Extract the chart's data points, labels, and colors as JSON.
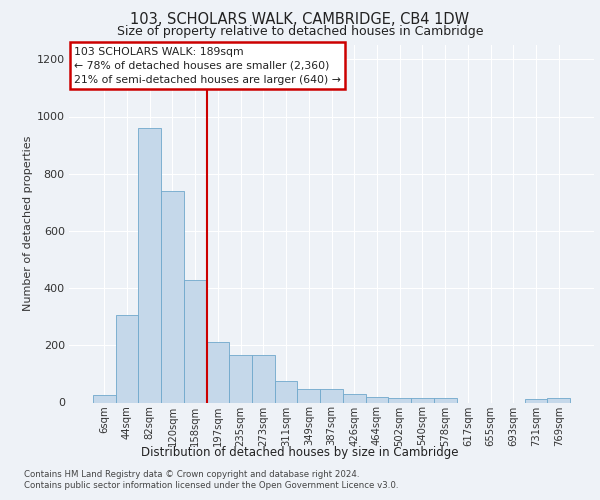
{
  "title1": "103, SCHOLARS WALK, CAMBRIDGE, CB4 1DW",
  "title2": "Size of property relative to detached houses in Cambridge",
  "xlabel": "Distribution of detached houses by size in Cambridge",
  "ylabel": "Number of detached properties",
  "bin_labels": [
    "6sqm",
    "44sqm",
    "82sqm",
    "120sqm",
    "158sqm",
    "197sqm",
    "235sqm",
    "273sqm",
    "311sqm",
    "349sqm",
    "387sqm",
    "426sqm",
    "464sqm",
    "502sqm",
    "540sqm",
    "578sqm",
    "617sqm",
    "655sqm",
    "693sqm",
    "731sqm",
    "769sqm"
  ],
  "bar_values": [
    25,
    305,
    960,
    740,
    430,
    210,
    165,
    165,
    75,
    48,
    48,
    30,
    20,
    15,
    15,
    15,
    0,
    0,
    0,
    12,
    15
  ],
  "bar_color": "#c5d8ea",
  "bar_edgecolor": "#6fa8cc",
  "annotation_text": "103 SCHOLARS WALK: 189sqm\n← 78% of detached houses are smaller (2,360)\n21% of semi-detached houses are larger (640) →",
  "annotation_box_color": "#cc0000",
  "vline_color": "#cc0000",
  "vline_x": 4.5,
  "ylim": [
    0,
    1250
  ],
  "yticks": [
    0,
    200,
    400,
    600,
    800,
    1000,
    1200
  ],
  "footnote1": "Contains HM Land Registry data © Crown copyright and database right 2024.",
  "footnote2": "Contains public sector information licensed under the Open Government Licence v3.0.",
  "background_color": "#eef2f7",
  "grid_color": "#ffffff"
}
